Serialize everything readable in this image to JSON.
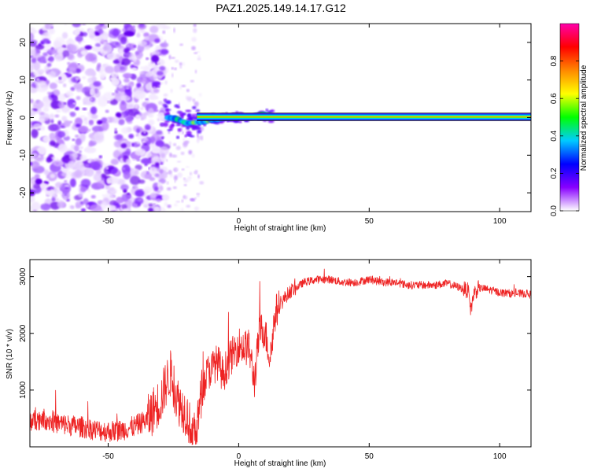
{
  "title": "PAZ1.2025.149.14.17.G12",
  "chart_data": [
    {
      "type": "heatmap",
      "xlabel": "Height of straight line (km)",
      "ylabel": "Frequency (Hz)",
      "xlim": [
        -80,
        112
      ],
      "ylim": [
        -25,
        25
      ],
      "x_ticks": [
        -50,
        0,
        50,
        100
      ],
      "y_ticks": [
        -20,
        -10,
        0,
        10,
        20
      ],
      "x_tick_labels": [
        "-50",
        "0",
        "50",
        "100"
      ],
      "y_tick_labels": [
        "-20",
        "-10",
        "0",
        "10",
        "20"
      ],
      "grid": false,
      "colorbar": {
        "label": "Normalized spectral amplitude",
        "range": [
          0,
          1
        ],
        "ticks": [
          0.0,
          0.2,
          0.4,
          0.6,
          0.8
        ],
        "tick_labels": [
          "0.0",
          "0.2",
          "0.4",
          "0.6",
          "0.8"
        ],
        "colors": [
          "#ffffff",
          "#8800ff",
          "#0000ff",
          "#00ccff",
          "#00ff00",
          "#ffff00",
          "#ff8800",
          "#ff0000",
          "#ff00aa"
        ]
      },
      "noise_region_x": [
        -80,
        -28
      ],
      "transition_region_x": [
        -28,
        13
      ],
      "carrier_band": {
        "x_range": [
          -28,
          112
        ],
        "y_center": 0.2,
        "half_width": 1.0,
        "peak_amplitude": 1.0
      },
      "carrier_track": [
        {
          "x": -27,
          "y": 0
        },
        {
          "x": -24,
          "y": -0.3
        },
        {
          "x": -20,
          "y": -1.5
        },
        {
          "x": -15,
          "y": -1.2
        },
        {
          "x": -10,
          "y": -0.6
        },
        {
          "x": -5,
          "y": 0
        },
        {
          "x": 0,
          "y": 0.3
        },
        {
          "x": 5,
          "y": 0
        },
        {
          "x": 9,
          "y": 0.8
        },
        {
          "x": 13,
          "y": 0.3
        }
      ]
    },
    {
      "type": "line",
      "xlabel": "Height of straight line (km)",
      "ylabel": "SNR (10 * v/v)",
      "xlim": [
        -80,
        112
      ],
      "ylim": [
        0,
        3300
      ],
      "x_ticks": [
        -50,
        0,
        50,
        100
      ],
      "y_ticks": [
        1000,
        2000,
        3000
      ],
      "x_tick_labels": [
        "-50",
        "0",
        "50",
        "100"
      ],
      "y_tick_labels": [
        "1000",
        "2000",
        "3000"
      ],
      "grid": false,
      "series": [
        {
          "color": "#ee2222",
          "x": [
            -80,
            -75,
            -70,
            -65,
            -60,
            -55,
            -50,
            -45,
            -40,
            -35,
            -32,
            -30,
            -28,
            -26,
            -24,
            -22,
            -20,
            -18,
            -16,
            -14,
            -12,
            -10,
            -8,
            -6,
            -4,
            -2,
            0,
            2,
            4,
            6,
            8,
            10,
            12,
            14,
            16,
            18,
            20,
            22,
            25,
            30,
            35,
            40,
            45,
            50,
            55,
            60,
            65,
            70,
            75,
            80,
            85,
            88,
            89,
            90,
            92,
            95,
            100,
            105,
            110,
            112
          ],
          "values": [
            450,
            500,
            420,
            380,
            350,
            300,
            270,
            290,
            360,
            480,
            700,
            800,
            1100,
            1300,
            900,
            700,
            600,
            250,
            380,
            1000,
            1300,
            1400,
            1500,
            1250,
            1500,
            1650,
            1800,
            1750,
            1750,
            1150,
            2050,
            2050,
            1550,
            2350,
            2500,
            2650,
            2750,
            2800,
            2900,
            2950,
            2950,
            2900,
            2900,
            2950,
            2900,
            2900,
            2850,
            2850,
            2850,
            2880,
            2800,
            2750,
            2400,
            2700,
            2800,
            2780,
            2720,
            2700,
            2700,
            2680
          ]
        }
      ]
    }
  ]
}
